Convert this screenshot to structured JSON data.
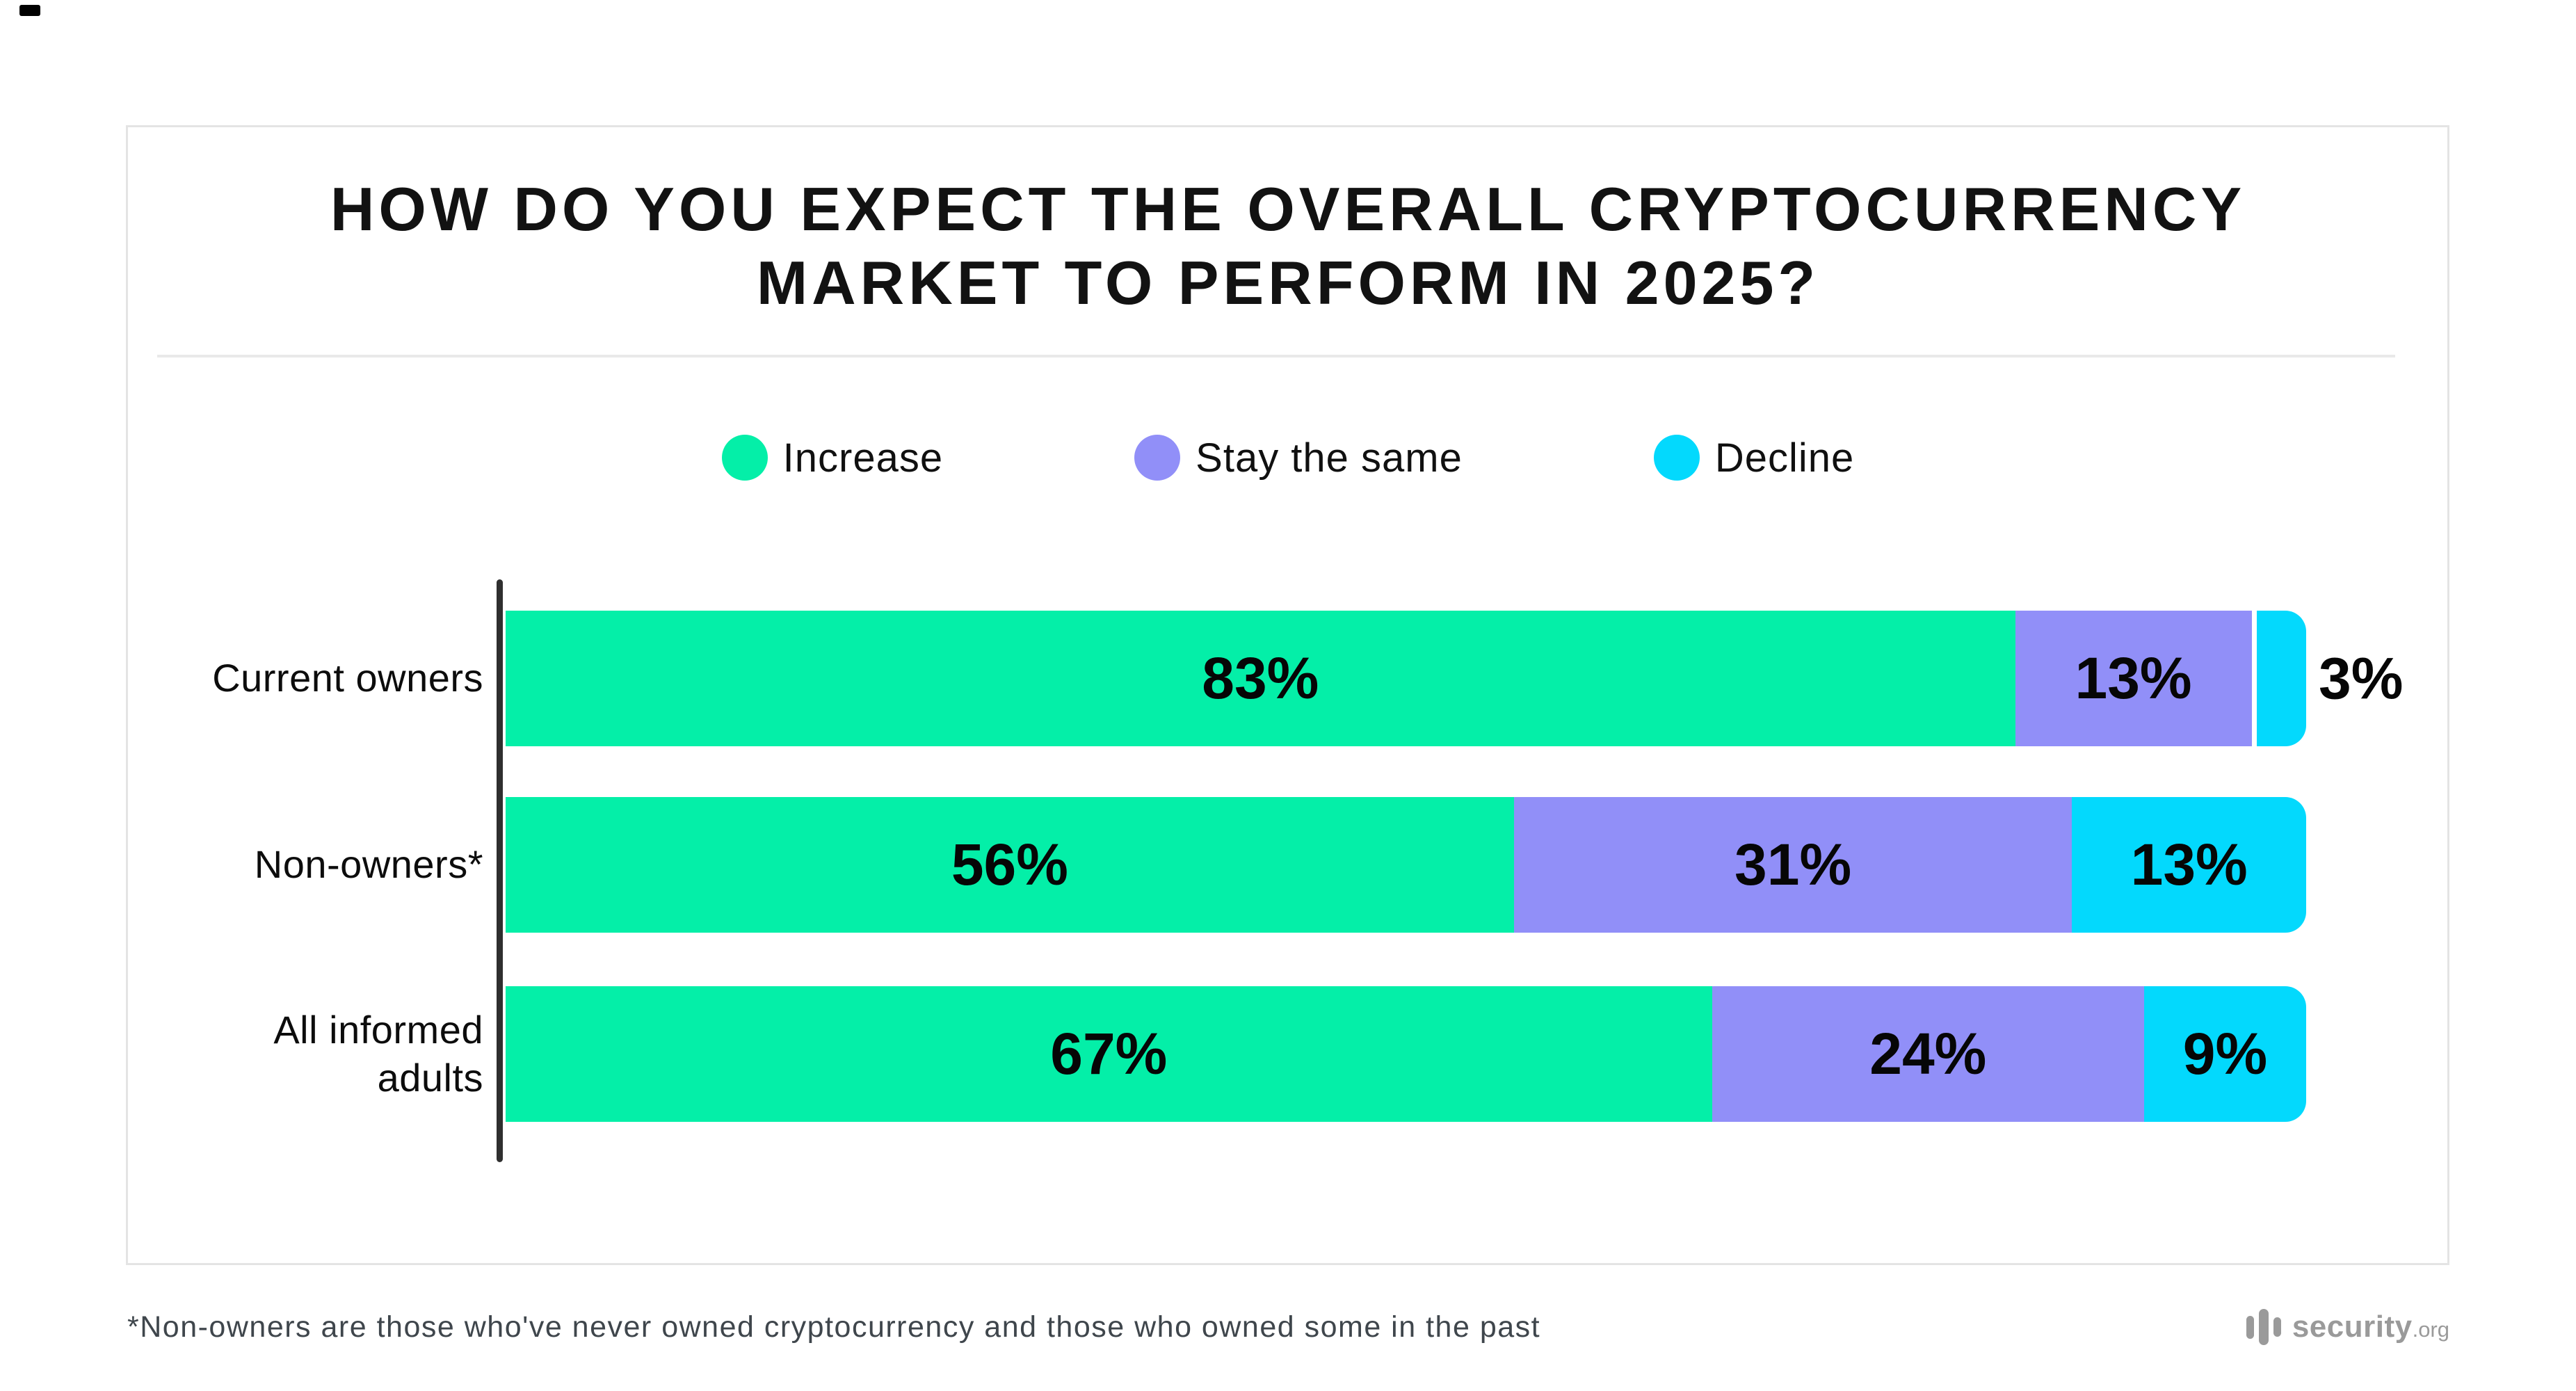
{
  "page": {
    "background": "#ffffff"
  },
  "card": {
    "border_color": "#e4e4e4"
  },
  "title": {
    "text": "HOW DO YOU EXPECT THE OVERALL CRYPTOCURRENCY MARKET TO PERFORM IN 2025?"
  },
  "legend": {
    "items": [
      {
        "label": "Increase",
        "color": "#04efa8"
      },
      {
        "label": "Stay the same",
        "color": "#918ff8"
      },
      {
        "label": "Decline",
        "color": "#03d9fd"
      }
    ]
  },
  "chart": {
    "axis_color": "#2f2f2f",
    "rows": [
      {
        "category": "Current owners",
        "outside_label": "3%",
        "segments": [
          {
            "label": "83%",
            "width": "83.84%",
            "color": "#04efa8"
          },
          {
            "label": "13%",
            "width": "13.13%",
            "color": "#918ff8"
          },
          {
            "label": "",
            "width": "3.03%",
            "color": "#03d9fd"
          }
        ]
      },
      {
        "category": "Non-owners*",
        "outside_label": "",
        "segments": [
          {
            "label": "56%",
            "width": "56%",
            "color": "#04efa8"
          },
          {
            "label": "31%",
            "width": "31%",
            "color": "#918ff8"
          },
          {
            "label": "13%",
            "width": "13%",
            "color": "#03d9fd"
          }
        ]
      },
      {
        "category": "All informed adults",
        "outside_label": "",
        "segments": [
          {
            "label": "67%",
            "width": "67%",
            "color": "#04efa8"
          },
          {
            "label": "24%",
            "width": "24%",
            "color": "#918ff8"
          },
          {
            "label": "9%",
            "width": "9%",
            "color": "#03d9fd"
          }
        ]
      }
    ]
  },
  "chart_data": {
    "type": "bar",
    "orientation": "horizontal",
    "stacked": true,
    "title": "HOW DO YOU EXPECT THE OVERALL CRYPTOCURRENCY MARKET TO PERFORM IN 2025?",
    "categories": [
      "Current owners",
      "Non-owners*",
      "All informed adults"
    ],
    "series": [
      {
        "name": "Increase",
        "color": "#04efa8",
        "values": [
          83,
          56,
          67
        ]
      },
      {
        "name": "Stay the same",
        "color": "#918ff8",
        "values": [
          13,
          31,
          24
        ]
      },
      {
        "name": "Decline",
        "color": "#03d9fd",
        "values": [
          3,
          13,
          9
        ]
      }
    ],
    "unit": "%",
    "xlim": [
      0,
      100
    ],
    "value_labels": true,
    "legend_position": "top",
    "grid": false,
    "footnote": "*Non-owners are those who've never owned cryptocurrency and those who owned some in the past"
  },
  "footnote": {
    "text": "*Non-owners are those who've never owned cryptocurrency and those who owned some in the past"
  },
  "logo": {
    "name": "security",
    "tld": ".org",
    "color": "#9a9a9a"
  }
}
